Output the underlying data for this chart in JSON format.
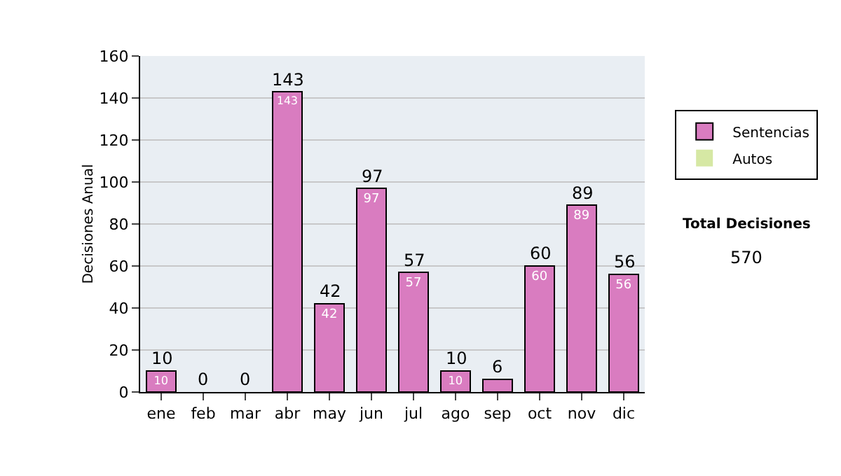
{
  "chart_data": {
    "type": "bar",
    "ylabel": "Decisiones Anual",
    "categories": [
      "ene",
      "feb",
      "mar",
      "abr",
      "may",
      "jun",
      "jul",
      "ago",
      "sep",
      "oct",
      "nov",
      "dic"
    ],
    "stacked": true,
    "series": [
      {
        "name": "Sentencias",
        "color": "#d97cc0",
        "values": [
          10,
          0,
          0,
          143,
          42,
          97,
          57,
          10,
          6,
          60,
          89,
          56
        ],
        "value_labels": [
          "10",
          null,
          null,
          "143",
          "42",
          "97",
          "57",
          "10",
          null,
          "60",
          "89",
          "56"
        ]
      },
      {
        "name": "Autos",
        "color": "#d6e8a4",
        "values": [
          0,
          0,
          0,
          0,
          0,
          0,
          0,
          0,
          0,
          0,
          0,
          0
        ]
      }
    ],
    "totals": [
      "10",
      "0",
      "0",
      "143",
      "42",
      "97",
      "57",
      "10",
      "6",
      "60",
      "89",
      "56"
    ],
    "ylim": [
      0,
      160
    ],
    "yticks": [
      0,
      20,
      40,
      60,
      80,
      100,
      120,
      140,
      160
    ],
    "grid": "y",
    "legend": "right",
    "annotations": [
      "Total Decisiones",
      "570"
    ]
  }
}
